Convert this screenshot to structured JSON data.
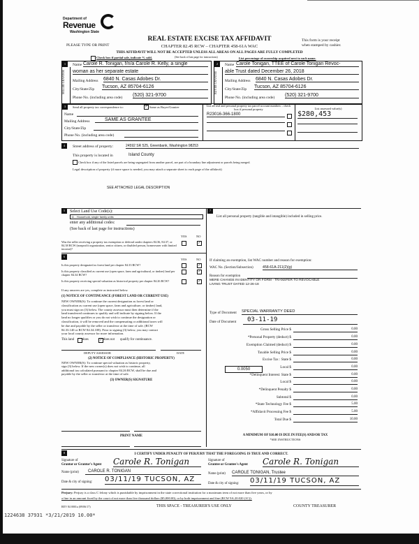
{
  "header": {
    "logo_text": "Department of Revenue Washington State",
    "please": "PLEASE TYPE OR PRINT",
    "title": "REAL ESTATE EXCISE TAX AFFIDAVIT",
    "chapter": "CHAPTER 82.45 RCW – CHAPTER 458-61A WAC",
    "warning": "THIS AFFIDAVIT WILL NOT BE ACCEPTED UNLESS ALL AREAS ON ALL PAGES ARE FULLY COMPLETED",
    "receipt1": "This form is your receipt",
    "receipt2": "when stamped by cashier.",
    "partial": "Check box if partial sale, indicate % sold.",
    "see_back": "(See back of last page for instructions)",
    "list_pct": "List percentage of ownership acquired next to each name."
  },
  "seller": {
    "num": "1",
    "side": "SELLER GRANTOR",
    "name_label": "Name",
    "name1": "Carole R. Tonigan, f/n/a Carole R. Kelly, a single",
    "name2": "woman as her separate estate",
    "addr_label": "Mailing Address",
    "addr": "6840 N. Casas Adobes Dr.",
    "city_label": "City/State/Zip",
    "city": "Tucson, AZ 85704-6126",
    "phone_label": "Phone No. (including area code)",
    "phone": "(520) 321-9700"
  },
  "buyer": {
    "num": "2",
    "side": "BUYER GRANTEE",
    "name_label": "Name",
    "name1": "Carole Tonigan, TTEE of Carole Tonigan Revoc-",
    "name2": "able Trust dated December 26, 2018",
    "addr_label": "Mailing Address",
    "addr": "6840 N. Casas Adobes Dr.",
    "city_label": "City/State/Zip",
    "city": "Tucson, AZ 85704-6126",
    "phone_label": "Phone No. (including area code)",
    "phone": "(520) 321-9700"
  },
  "correspondence": {
    "num": "3",
    "label": "Send all property tax correspondence to:",
    "same_label": "Same as Buyer/Grantee",
    "same_checked": true,
    "name_label": "Name",
    "addr_label": "Mailing Address",
    "addr": "SAME AS GRANTEE",
    "city_label": "City/State/Zip",
    "phone_label": "Phone No. (including area code)"
  },
  "parcels": {
    "header": "List all real and personal property tax parcel account numbers – check box if personal property",
    "values_header": "List assessed value(s)",
    "parcel1": "R23016-366-1800",
    "value1": "$280,453"
  },
  "property": {
    "num": "4",
    "street_label": "Street address of property:",
    "street": "24592 SR 525, Greenbank, Washington 98253",
    "located_label": "This property is located in",
    "county": "Island County",
    "segregate": "Check box if any of the listed parcels are being segregated from another parcel, are part of a boundary line adjustment or parcels being merged.",
    "legal_label": "Legal description of property (if more space is needed, you may attach a separate sheet to each page of the affidavit)",
    "legal": "SEE ATTACHED LEGAL DESCRIPTION"
  },
  "land_use": {
    "num": "5",
    "label": "Select Land Use Code(s):",
    "code": "11 - Household, single family units",
    "additional": "enter any additional codes:",
    "see_back": "(See back of last page for instructions)",
    "yes": "YES",
    "no": "NO",
    "q": "Was the seller receiving a property tax exemption or deferral under chapters 84.36, 84.37, or 84.38 RCW (nonprofit organization, senior citizen, or disabled person, homeowner with limited income)?",
    "answer": "NO"
  },
  "sec6": {
    "num": "6",
    "yes": "YES",
    "no": "NO",
    "q1": "Is this property designated as forest land per chapter 84.33 RCW?",
    "q2": "Is this property classified as current use (open space, farm and agricultural, or timber) land per chapter 84.34 RCW?",
    "q3": "Is this property receiving special valuation as historical property per chapter 84.26 RCW?",
    "answers": [
      "NO",
      "NO",
      "NO"
    ],
    "if_yes": "If any answers are yes, complete as instructed below.",
    "n1_title": "(1) NOTICE OF CONTINUANCE (FOREST LAND OR CURRENT USE)",
    "n1_text": [
      "NEW OWNER(S): To continue the current designation as forest land or",
      "classification as current use (open space, farm and agriculture, or timber) land,",
      "you must sign on (3) below. The county assessor must then determine if the",
      "land transferred continues to qualify and will indicate by signing below. If the",
      "land no longer qualifies or you do not wish to continue the designation or",
      "classification, it will be removed and the compensating or additional taxes will",
      "be due and payable by the seller or transferor at the time of sale. (RCW",
      "84.33.140 or RCW 84.34.108). Prior to signing (3) below, you may contact",
      "your local county assessor for more information."
    ],
    "this_land": "This land",
    "does": "does",
    "does_not": "does not",
    "qualify": "qualify for continuance.",
    "does_not_checked": true,
    "deputy": "DEPUTY ASSESSOR",
    "date": "DATE",
    "n2_title": "(2) NOTICE OF COMPLIANCE (HISTORIC PROPERTY)",
    "n2_text": [
      "NEW OWNER(S): To continue special valuation as historic property,",
      "sign (3) below. If the new owner(s) does not wish to continue, all",
      "additional tax calculated pursuant to chapter 84.26 RCW, shall be due and",
      "payable by the seller or transferor at the time of sale."
    ],
    "n3_title": "(3) OWNER(S) SIGNATURE",
    "print_name": "PRINT NAME"
  },
  "sec7": {
    "num": "7",
    "label": "List all personal property (tangible and intangible) included in selling price.",
    "exempt_label": "If claiming an exemption, list WAC number and reason for exemption:",
    "wac_label": "WAC No. (Section/Subsection)",
    "wac": "458-61A-211(2)(g)",
    "reason_label": "Reason for exemption",
    "reason1": "MERE CHANGE IN IDENTITY OR FORM - TRANSFER TO REVOCABLE",
    "reason2": "LIVING TRUST DATED 12-26-18",
    "doc_type_label": "Type of Document",
    "doc_type": "SPECIAL WARRANTY DEED",
    "doc_date_label": "Date of Document",
    "doc_date": "03-11-19",
    "rate": "0.0050",
    "fees": [
      {
        "label": "Gross Selling Price $",
        "value": "0.00"
      },
      {
        "label": "*Personal Property (deduct) $",
        "value": "0.00"
      },
      {
        "label": "Exemption Claimed (deduct) $",
        "value": "0.00"
      },
      {
        "label": "Taxable Selling Price $",
        "value": "0.00"
      },
      {
        "label": "Excise Tax : State $",
        "value": "0.00"
      },
      {
        "label": "Local $",
        "value": "0.00"
      },
      {
        "label": "*Delinquent Interest: State $",
        "value": "0.00"
      },
      {
        "label": "Local $",
        "value": "0.00"
      },
      {
        "label": "*Delinquent Penalty $",
        "value": "0.00"
      },
      {
        "label": "Subtotal $",
        "value": "0.00"
      },
      {
        "label": "*State Technology Fee $",
        "value": "5.00"
      },
      {
        "label": "*Affidavit Processing Fee $",
        "value": "5.00"
      },
      {
        "label": "Total Due $",
        "value": "10.00"
      }
    ],
    "minimum": "A MINIMUM OF $10.00 IS DUE IN FEE(S) AND/OR TAX",
    "see_instr": "*SEE INSTRUCTIONS"
  },
  "sec8": {
    "num": "8",
    "certify": "I CERTIFY UNDER PENALTY OF PERJURY THAT THE FOREGOING IS TRUE AND CORRECT.",
    "sig_label1": "Signature of",
    "grantor_agent": "Grantor or Grantor's Agent",
    "grantee_agent": "Grantee or Grantee's Agent",
    "grantor_sig": "Carole R. Tonigan",
    "grantee_sig": "Carole R. Tonigan",
    "name_label": "Name (print)",
    "grantor_name": "CAROLE R. TONIGAN",
    "grantee_name": "CAROLE TONIGAN, Trustee",
    "date_label": "Date & city of signing:",
    "grantor_date": "03/11/19  TUCSON, AZ",
    "grantee_date": "03/11/19  TUCSON, AZ"
  },
  "footer": {
    "perjury_b": "Perjury:",
    "perjury": "Perjury is a class C felony which is punishable by imprisonment in the state correctional institution for a maximum term of not more than five years, or by",
    "perjury2": "a fine in an amount fixed by the court of not more than five thousand dollars ($5,000.00), or by both imprisonment and fine (RCW 9A.20.020 (1C)).",
    "rev": "REV 84 0001a (09/06/17)",
    "treasurer_use": "THIS SPACE - TREASURER'S USE ONLY",
    "county_treasurer": "COUNTY TREASURER",
    "stamp": "1224638 37931 *3/21/2019 10.00*"
  }
}
